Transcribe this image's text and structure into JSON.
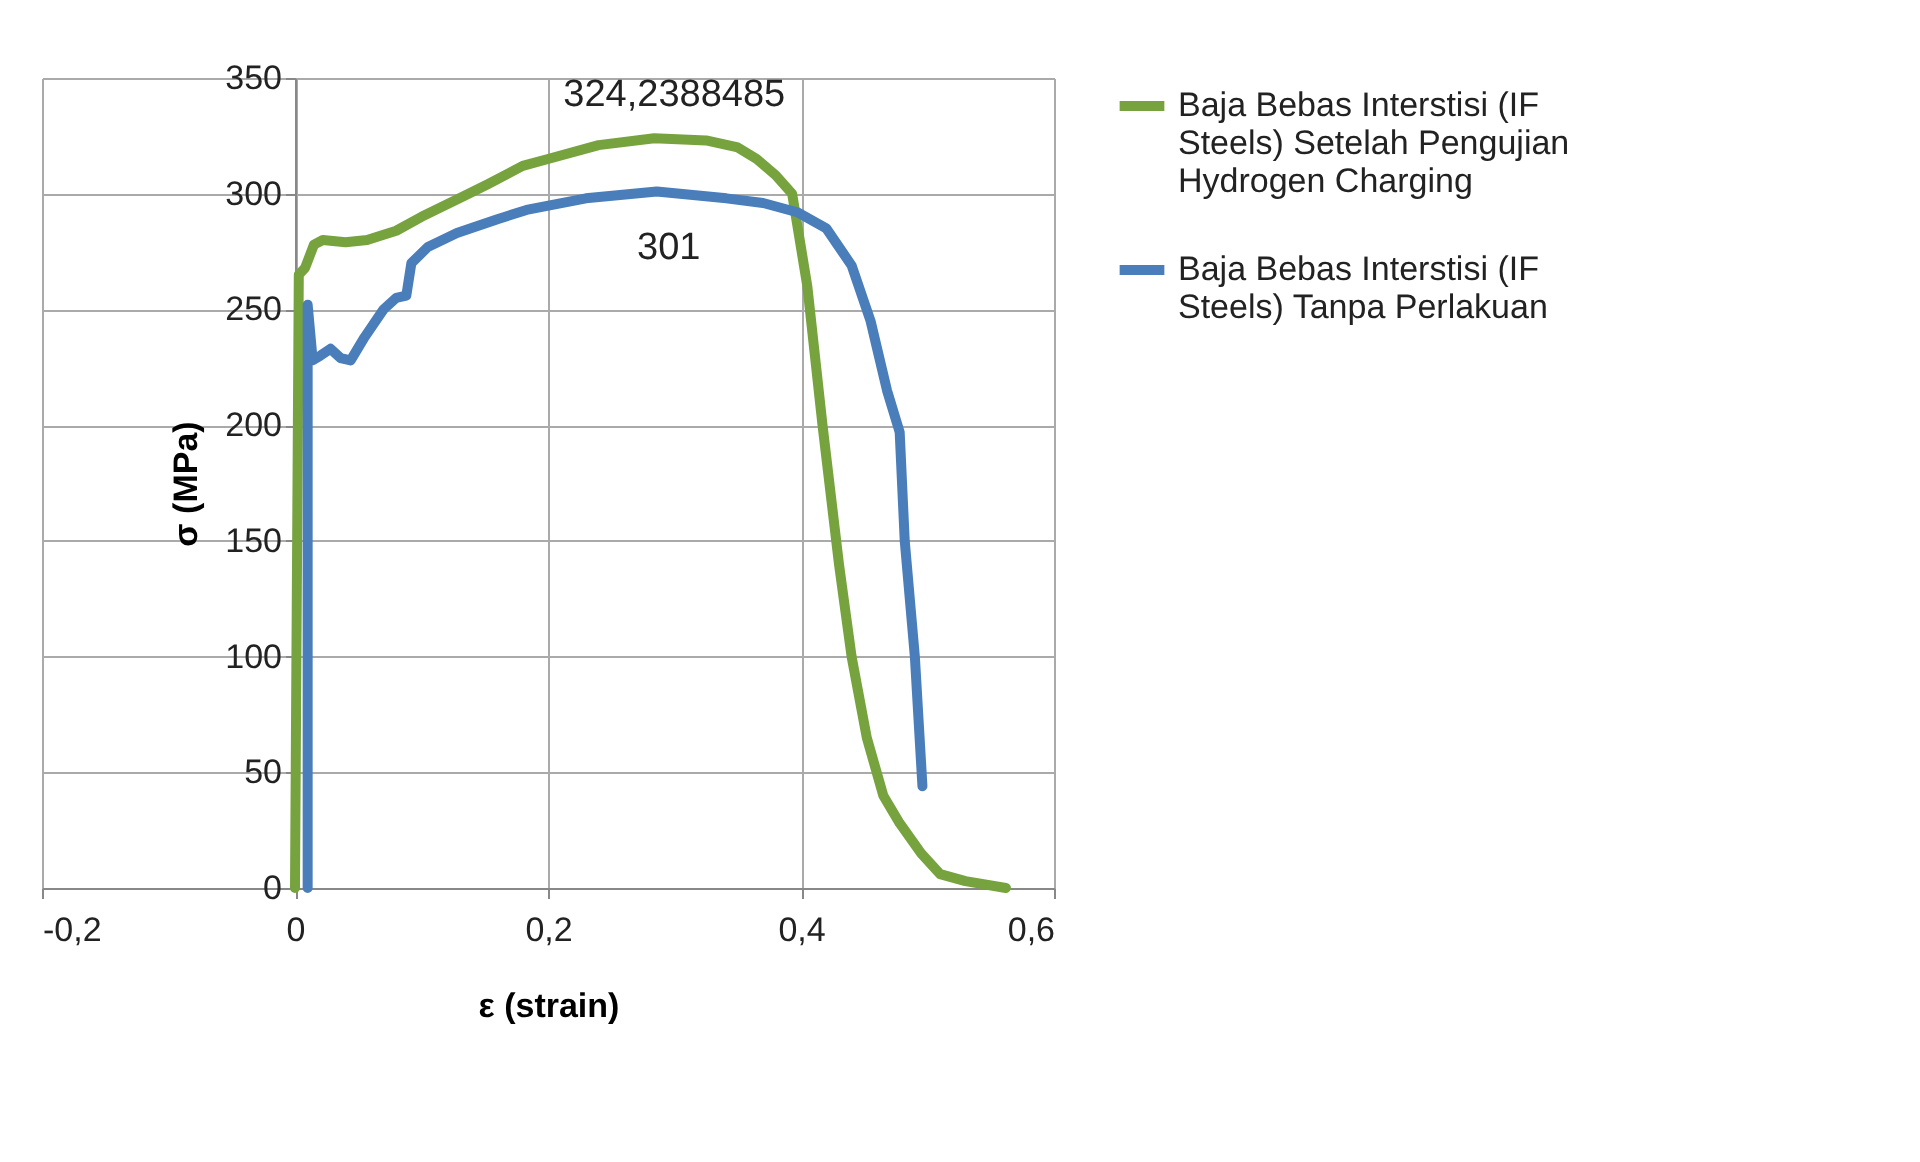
{
  "chart_data": {
    "type": "line",
    "xlabel": "ε (strain)",
    "ylabel": "σ (MPa)",
    "series": [
      {
        "name": "Baja Bebas Interstisi (IF Steels) Setelah Pengujian Hydrogen Charging",
        "color": "#77a33f",
        "x": [
          0,
          0.003,
          0.008,
          0.015,
          0.022,
          0.04,
          0.057,
          0.08,
          0.1,
          0.13,
          0.152,
          0.18,
          0.2,
          0.24,
          0.284,
          0.325,
          0.35,
          0.365,
          0.38,
          0.393,
          0.405,
          0.417,
          0.43,
          0.44,
          0.452,
          0.465,
          0.478,
          0.495,
          0.51,
          0.53,
          0.562
        ],
        "values": [
          0,
          265,
          268,
          278,
          280,
          279,
          280,
          284,
          290,
          298,
          304,
          312,
          315,
          321,
          324,
          323,
          320,
          315,
          308,
          300,
          260,
          200,
          140,
          100,
          65,
          40,
          28,
          15,
          6,
          3,
          0
        ]
      },
      {
        "name": "Baja Bebas Interstisi (IF Steels) Tanpa Perlakuan",
        "color": "#4a7ebb",
        "x": [
          0.01,
          0.01,
          0.012,
          0.014,
          0.02,
          0.028,
          0.036,
          0.044,
          0.055,
          0.07,
          0.08,
          0.088,
          0.092,
          0.105,
          0.128,
          0.16,
          0.183,
          0.23,
          0.286,
          0.341,
          0.37,
          0.397,
          0.42,
          0.44,
          0.455,
          0.468,
          0.478,
          0.482,
          0.49,
          0.496
        ],
        "values": [
          0,
          252,
          240,
          228,
          230,
          233,
          229,
          228,
          238,
          250,
          255,
          256,
          270,
          277,
          283,
          289,
          293,
          298,
          301,
          298,
          296,
          292,
          285,
          269,
          245,
          215,
          197,
          150,
          100,
          44
        ]
      }
    ],
    "annotations": [
      {
        "text": "324,2388485",
        "x": 0.284,
        "y": 324
      },
      {
        "text": "301",
        "x": 0.286,
        "y": 301
      }
    ],
    "xlim": [
      -0.2,
      0.6
    ],
    "xticks": [
      {
        "value": -0.2,
        "label": "-0,2"
      },
      0,
      {
        "value": 0.2,
        "label": "0,2"
      },
      {
        "value": 0.4,
        "label": "0,4"
      },
      {
        "value": 0.6,
        "label": "0,6"
      }
    ],
    "ylim": [
      0,
      350
    ],
    "yticks": [
      0,
      50,
      100,
      150,
      200,
      250,
      300,
      350
    ],
    "grid": true,
    "legend": "right",
    "marker": "none",
    "line_style": "solid"
  }
}
